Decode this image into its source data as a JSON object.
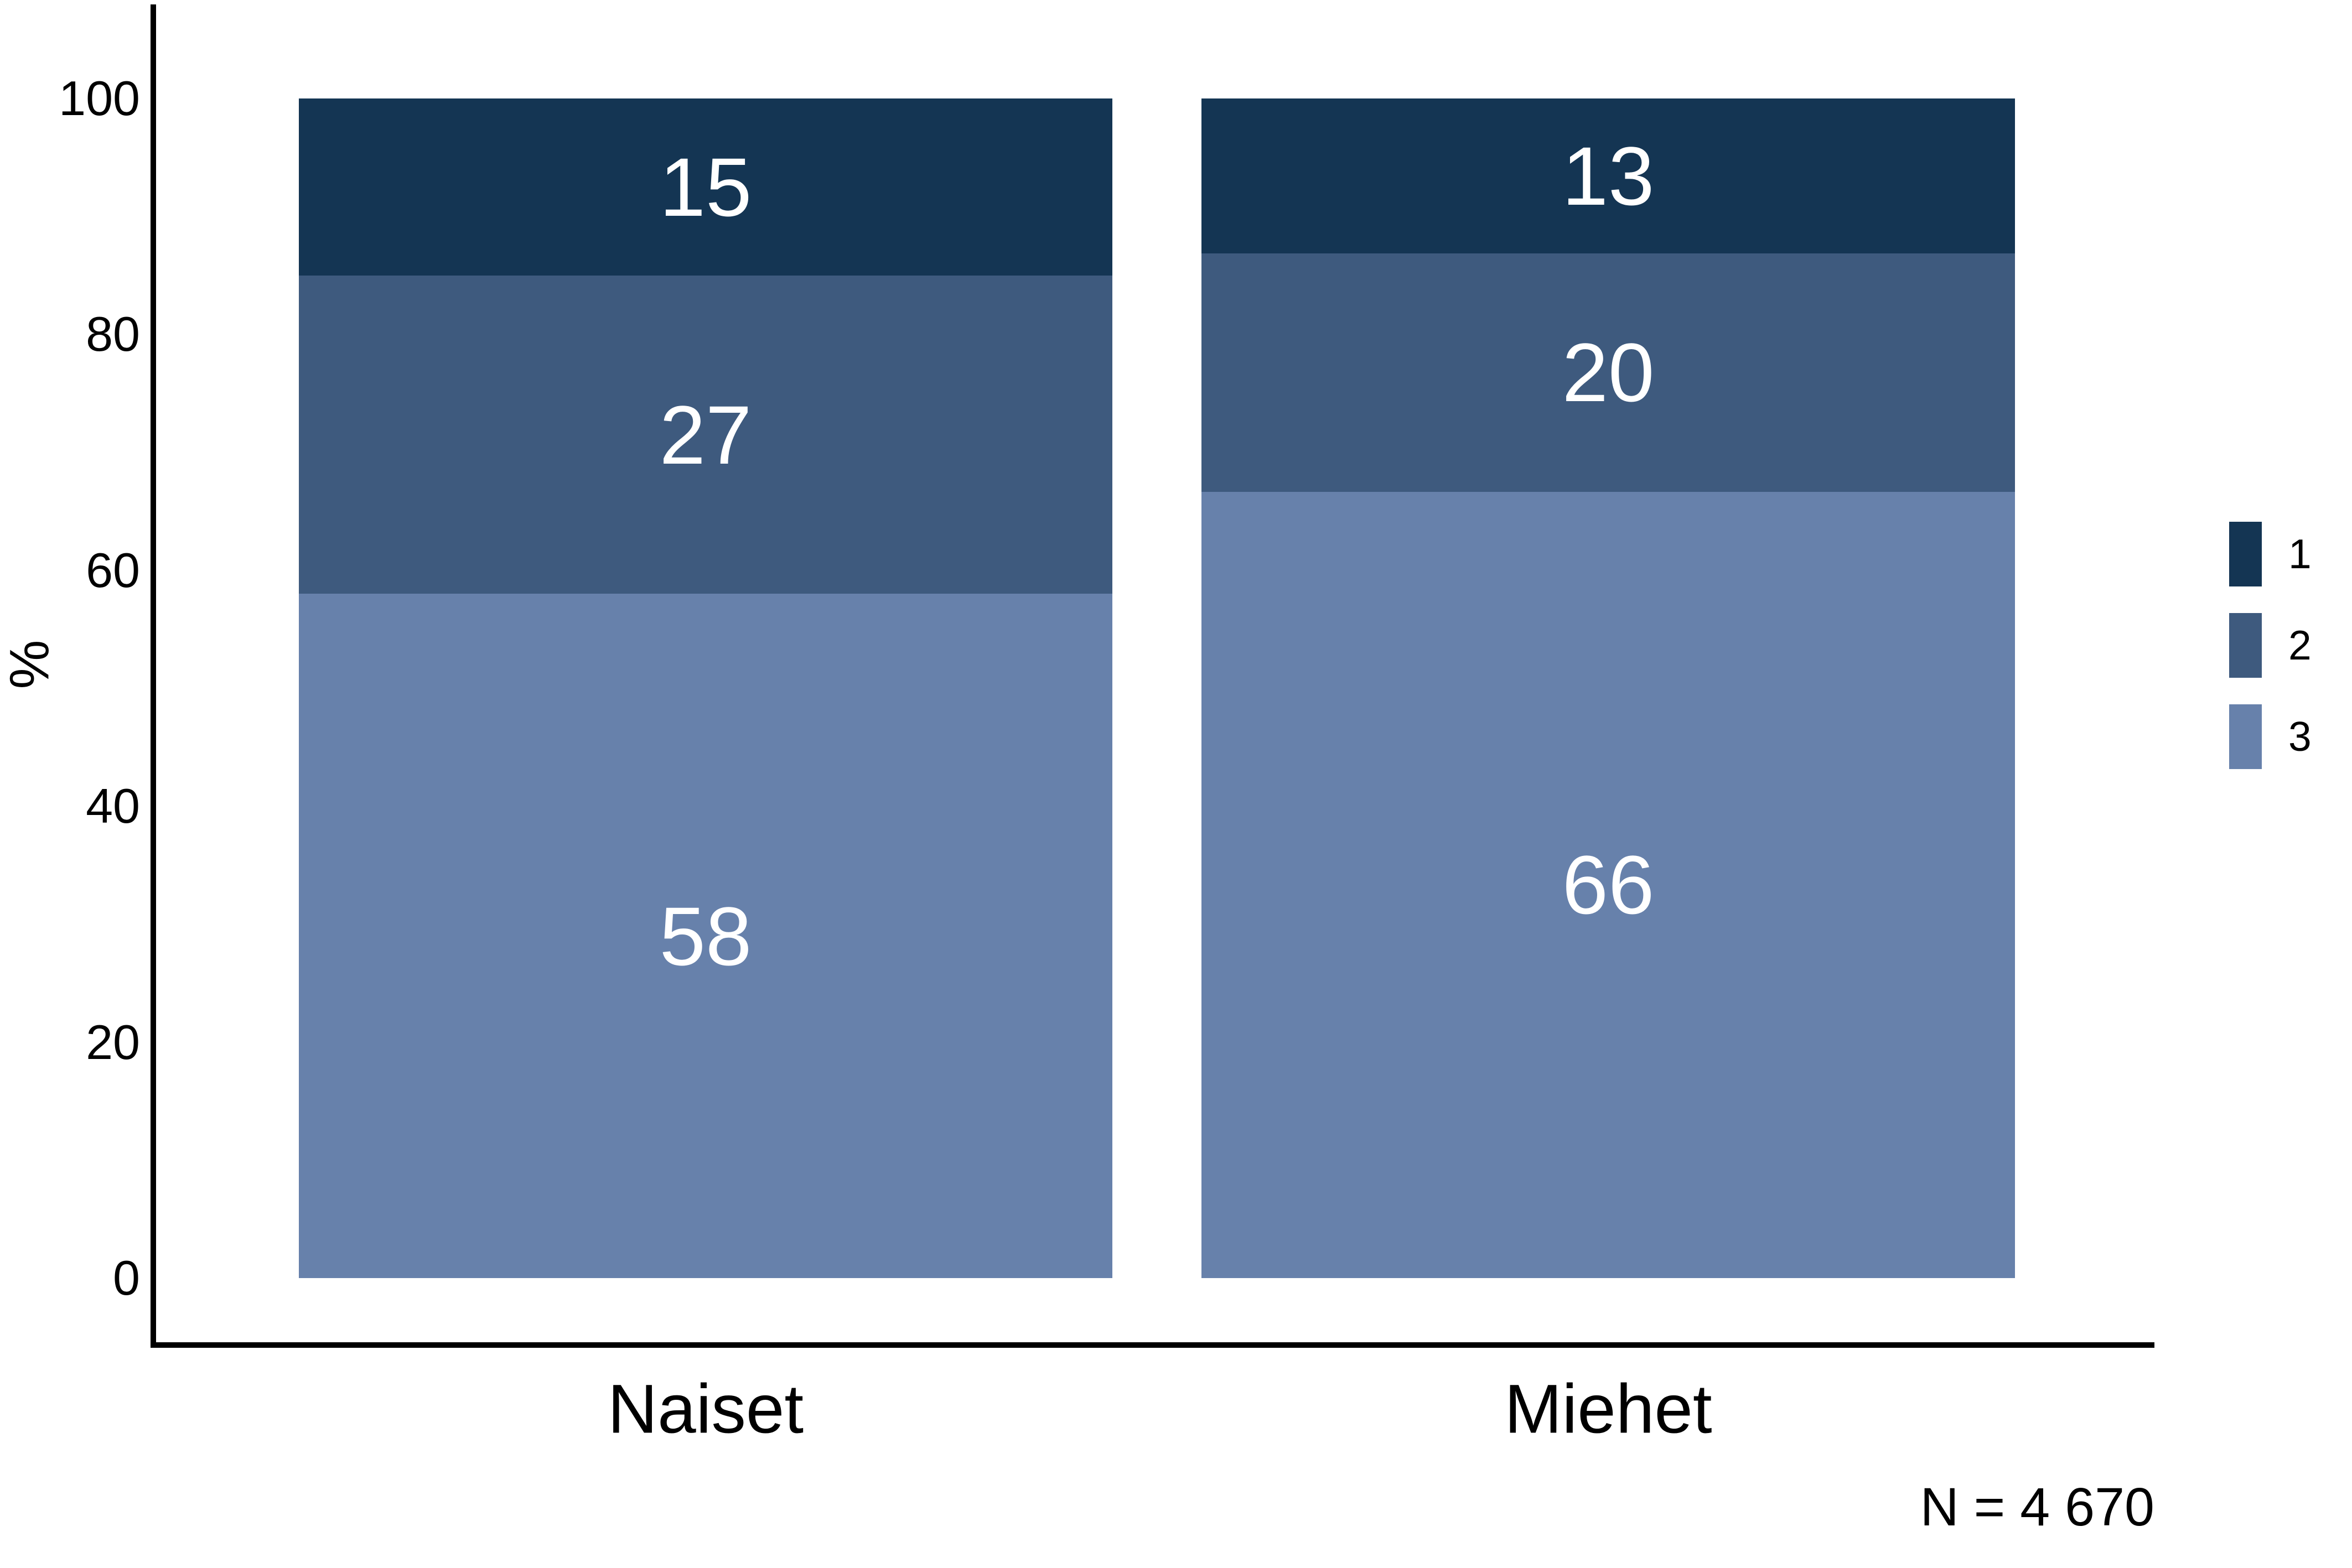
{
  "chart_data": {
    "type": "bar",
    "stacked": true,
    "orientation": "vertical",
    "categories": [
      "Naiset",
      "Miehet"
    ],
    "series": [
      {
        "name": "1",
        "color": "#143553",
        "values": [
          15,
          13
        ]
      },
      {
        "name": "2",
        "color": "#3E5A7E",
        "values": [
          27,
          20
        ]
      },
      {
        "name": "3",
        "color": "#6781AB",
        "values": [
          58,
          66
        ]
      }
    ],
    "ylabel": "%",
    "xlabel": "",
    "ylim": [
      0,
      100
    ],
    "yticks": [
      0,
      20,
      40,
      60,
      80,
      100
    ],
    "grid": false,
    "legend_position": "right",
    "value_label_color": "#FFFFFF",
    "axis_color": "#000000",
    "background_color": "#FFFFFF",
    "note": "N = 4 670"
  }
}
